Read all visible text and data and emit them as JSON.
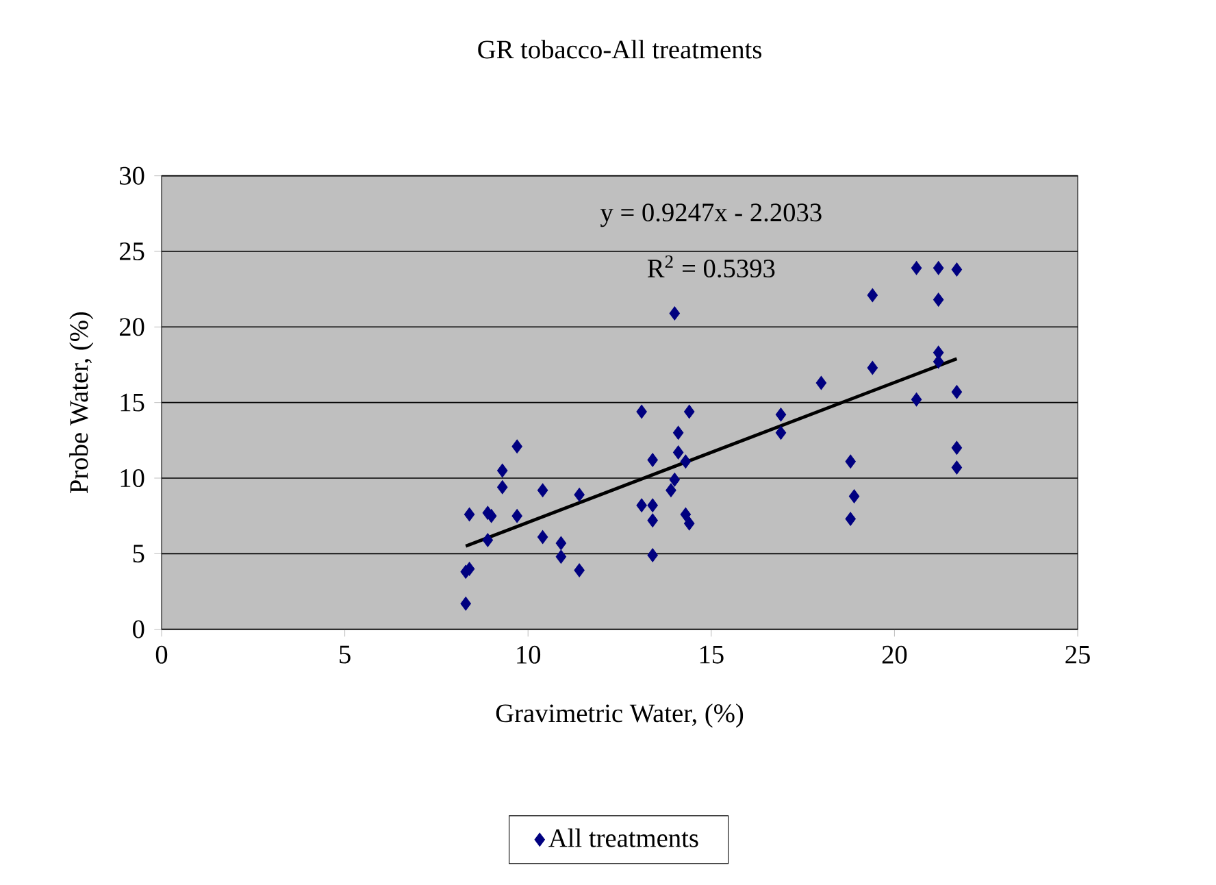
{
  "chart_data": {
    "type": "scatter",
    "title": "GR tobacco-All treatments",
    "xlabel": "Gravimetric Water, (%)",
    "ylabel": "Probe Water, (%)",
    "xlim": [
      0,
      25
    ],
    "xticks": [
      0,
      5,
      10,
      15,
      20,
      25
    ],
    "ylim": [
      0,
      30
    ],
    "yticks": [
      0,
      5,
      10,
      15,
      20,
      25,
      30
    ],
    "grid": "y",
    "legend": "bottom",
    "marker": "diamond",
    "annotations": [
      "y = 0.9247x - 2.2033",
      "R$^{2}$ = 0.5393"
    ],
    "series": [
      {
        "name": "All treatments",
        "color": "#000080",
        "x": [
          8.3,
          8.3,
          8.4,
          8.4,
          8.9,
          9.0,
          8.9,
          9.3,
          9.3,
          9.7,
          9.7,
          10.4,
          10.4,
          10.9,
          10.9,
          11.4,
          11.4,
          13.1,
          13.1,
          13.4,
          13.4,
          13.4,
          13.4,
          14.0,
          13.9,
          14.0,
          14.1,
          14.1,
          14.3,
          14.3,
          14.4,
          14.4,
          16.9,
          16.9,
          18.0,
          18.8,
          18.9,
          18.8,
          19.4,
          19.4,
          20.6,
          20.6,
          21.2,
          21.2,
          21.2,
          21.2,
          21.7,
          21.7,
          21.7,
          21.7
        ],
        "values": [
          1.7,
          3.8,
          4.0,
          7.6,
          5.9,
          7.5,
          7.7,
          9.4,
          10.5,
          12.1,
          7.5,
          9.2,
          6.1,
          5.7,
          4.8,
          3.9,
          8.9,
          14.4,
          8.2,
          11.2,
          8.2,
          7.2,
          4.9,
          20.9,
          9.2,
          9.9,
          11.7,
          13.0,
          11.1,
          7.6,
          7.0,
          14.4,
          14.2,
          13.0,
          16.3,
          11.1,
          8.8,
          7.3,
          22.1,
          17.3,
          23.9,
          15.2,
          23.9,
          21.8,
          18.3,
          17.7,
          23.8,
          15.7,
          12.0,
          10.7
        ]
      },
      {
        "type": "line",
        "color": "#000000",
        "marker": "none",
        "x": [
          8.3,
          21.7
        ],
        "values": [
          5.5,
          17.9
        ]
      }
    ]
  }
}
